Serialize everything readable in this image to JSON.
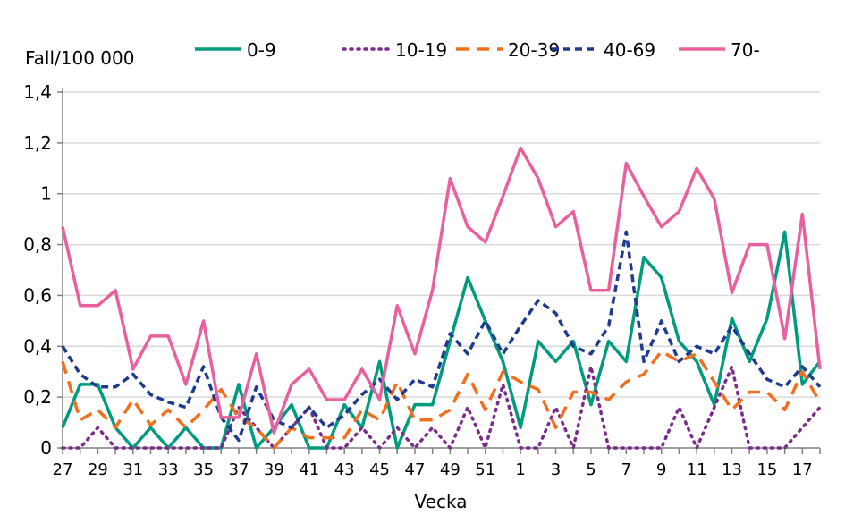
{
  "chart_data": {
    "type": "line",
    "ylabel": "Fall/100 000",
    "xlabel": "Vecka",
    "ylim": [
      0,
      1.4
    ],
    "yticks": [
      "0",
      "0,2",
      "0,4",
      "0,6",
      "0,8",
      "1",
      "1,2",
      "1,4"
    ],
    "grid": true,
    "legend_position": "top",
    "x": [
      27,
      28,
      29,
      30,
      31,
      32,
      33,
      34,
      35,
      36,
      37,
      38,
      39,
      40,
      41,
      42,
      43,
      44,
      45,
      46,
      47,
      48,
      49,
      50,
      51,
      52,
      1,
      2,
      3,
      4,
      5,
      6,
      7,
      8,
      9,
      10,
      11,
      12,
      13,
      14,
      15,
      16,
      17,
      18
    ],
    "xtick_labels": [
      "27",
      "29",
      "31",
      "33",
      "35",
      "37",
      "39",
      "41",
      "43",
      "45",
      "47",
      "49",
      "51",
      "1",
      "3",
      "5",
      "7",
      "9",
      "11",
      "13",
      "15",
      "17"
    ],
    "series": [
      {
        "name": "0-9",
        "color": "#009B7D",
        "style": "solid",
        "values": [
          0.08,
          0.25,
          0.25,
          0.08,
          0,
          0.08,
          0,
          0.08,
          0,
          0,
          0.25,
          0,
          0.08,
          0.17,
          0,
          0,
          0.17,
          0.08,
          0.34,
          0,
          0.17,
          0.17,
          0.42,
          0.67,
          0.5,
          0.34,
          0.08,
          0.42,
          0.34,
          0.42,
          0.17,
          0.42,
          0.34,
          0.75,
          0.67,
          0.42,
          0.34,
          0.17,
          0.51,
          0.34,
          0.51,
          0.85,
          0.25,
          0.34
        ]
      },
      {
        "name": "10-19",
        "color": "#7B2C8A",
        "style": "dotted",
        "values": [
          0,
          0,
          0.08,
          0,
          0,
          0,
          0,
          0,
          0,
          0,
          0.16,
          0.08,
          0,
          0.08,
          0.16,
          0,
          0,
          0.08,
          0,
          0.08,
          0,
          0.08,
          0,
          0.16,
          0,
          0.25,
          0,
          0,
          0.16,
          0,
          0.32,
          0,
          0,
          0,
          0,
          0.16,
          0,
          0.16,
          0.32,
          0,
          0,
          0,
          0.08,
          0.16
        ]
      },
      {
        "name": "20-39",
        "color": "#F07020",
        "style": "dashed",
        "values": [
          0.34,
          0.11,
          0.15,
          0.08,
          0.19,
          0.09,
          0.15,
          0.08,
          0.15,
          0.23,
          0.12,
          0.08,
          0,
          0.08,
          0.04,
          0.04,
          0.04,
          0.15,
          0.11,
          0.26,
          0.11,
          0.11,
          0.15,
          0.29,
          0.15,
          0.3,
          0.26,
          0.23,
          0.08,
          0.22,
          0.22,
          0.19,
          0.26,
          0.29,
          0.38,
          0.34,
          0.37,
          0.26,
          0.15,
          0.22,
          0.22,
          0.15,
          0.3,
          0.18
        ]
      },
      {
        "name": "40-69",
        "color": "#1F3A8F",
        "style": "short-dashed",
        "values": [
          0.4,
          0.29,
          0.24,
          0.24,
          0.29,
          0.21,
          0.18,
          0.16,
          0.32,
          0.12,
          0.03,
          0.24,
          0.11,
          0.08,
          0.16,
          0.08,
          0.13,
          0.21,
          0.27,
          0.19,
          0.27,
          0.24,
          0.45,
          0.37,
          0.5,
          0.37,
          0.48,
          0.58,
          0.53,
          0.4,
          0.37,
          0.48,
          0.85,
          0.34,
          0.5,
          0.34,
          0.4,
          0.37,
          0.48,
          0.37,
          0.27,
          0.24,
          0.32,
          0.24
        ]
      },
      {
        "name": "70-",
        "color": "#E8609E",
        "style": "solid",
        "values": [
          0.87,
          0.56,
          0.56,
          0.62,
          0.31,
          0.44,
          0.44,
          0.25,
          0.5,
          0.12,
          0.12,
          0.37,
          0.06,
          0.25,
          0.31,
          0.19,
          0.19,
          0.31,
          0.19,
          0.56,
          0.37,
          0.62,
          1.06,
          0.87,
          0.81,
          0.99,
          1.18,
          1.06,
          0.87,
          0.93,
          0.62,
          0.62,
          1.12,
          0.99,
          0.87,
          0.93,
          1.1,
          0.98,
          0.61,
          0.8,
          0.8,
          0.43,
          0.92,
          0.31
        ]
      }
    ]
  }
}
